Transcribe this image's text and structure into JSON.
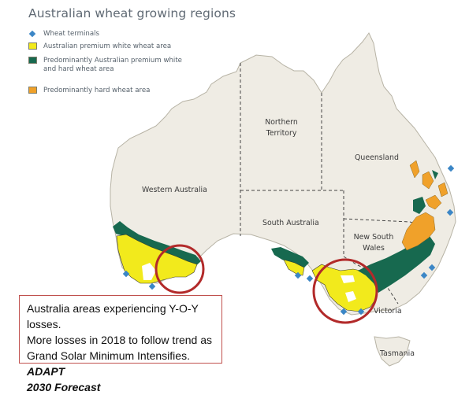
{
  "title": "Australian wheat growing regions",
  "legend": [
    {
      "label": "Wheat terminals",
      "color": "#3b86c6",
      "icon": "diamond-marker"
    },
    {
      "label": "Australian premium white wheat area",
      "color": "#f2ea1c",
      "icon": "square-swatch"
    },
    {
      "label": "Predominantly Australian premium white and hard wheat area",
      "color": "#17694f",
      "icon": "square-swatch"
    },
    {
      "label": "Predominantly hard wheat area",
      "color": "#f0a12a",
      "icon": "square-swatch"
    }
  ],
  "regions": {
    "western_australia": "Western Australia",
    "northern_territory": [
      "Northern",
      "Territory"
    ],
    "queensland": "Queensland",
    "south_australia": "South Australia",
    "new_south_wales": [
      "New South",
      "Wales"
    ],
    "victoria": "Victoria",
    "tasmania": "Tasmania"
  },
  "caption": {
    "line1": "Australia areas experiencing Y-O-Y losses.",
    "line2": "More losses in 2018 to follow trend as",
    "line3": "Grand Solar Minimum Intensifies.",
    "emphasis1": "ADAPT",
    "emphasis2": "2030 Forecast"
  },
  "colors": {
    "land": "#efece4",
    "coast": "#b7b3a5",
    "premium_white": "#f2ea1c",
    "white_and_hard": "#17694f",
    "hard": "#f0a12a",
    "terminal": "#3b86c6",
    "highlight_circle": "#b22a2a"
  }
}
